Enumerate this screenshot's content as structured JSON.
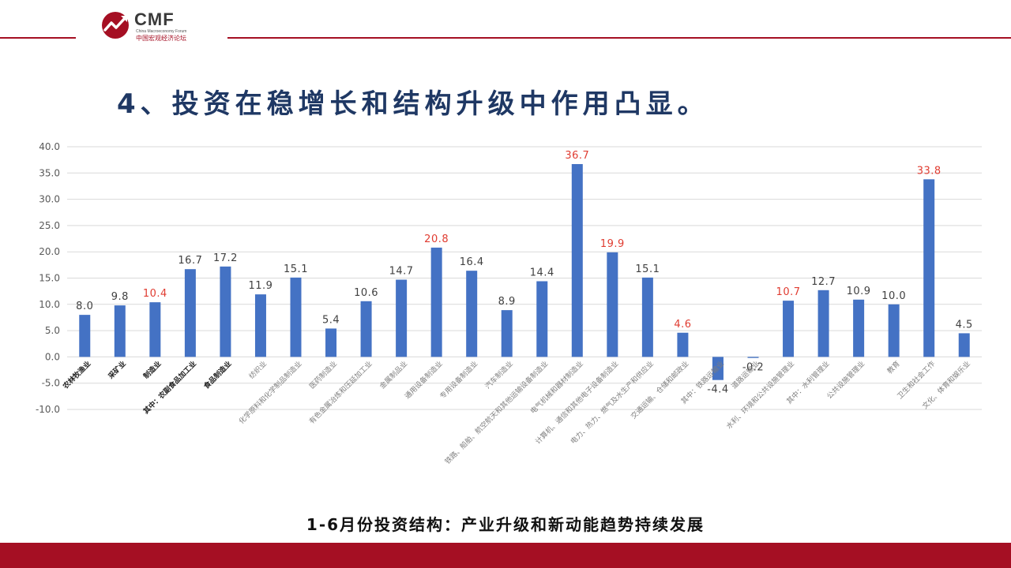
{
  "brand": {
    "name": "CMF",
    "subtitle_en": "China Macroeconomy Forum",
    "subtitle_cn": "中国宏观经济论坛",
    "accent_color": "#a50f23"
  },
  "page_title": "4、投资在稳增长和结构升级中作用凸显。",
  "caption": "1-6月份投资结构：产业升级和新动能趋势持续发展",
  "chart_data": {
    "type": "bar",
    "title": "",
    "xlabel": "",
    "ylabel": "",
    "ylim": [
      -10,
      40
    ],
    "yticks": [
      "40.0",
      "35.0",
      "30.0",
      "25.0",
      "20.0",
      "15.0",
      "10.0",
      "5.0",
      "0.0",
      "-5.0",
      "-10.0"
    ],
    "grid": true,
    "bar_color": "#4472c4",
    "label_color_default": "#404040",
    "label_color_highlight": "#e03c31",
    "categories": [
      "农林牧渔业",
      "采矿业",
      "制造业",
      "其中：农副食品加工业",
      "食品制造业",
      "纺织业",
      "化学原料和化学制品制造业",
      "医药制造业",
      "有色金属冶炼和压延加工业",
      "金属制品业",
      "通用设备制造业",
      "专用设备制造业",
      "汽车制造业",
      "铁路、船舶、航空航天和其他运输设备制造业",
      "电气机械和器材制造业",
      "计算机、通信和其他电子设备制造业",
      "电力、热力、燃气及水生产和供应业",
      "交通运输、仓储和邮政业",
      "其中：铁路运输业",
      "道路运输业",
      "水利、环境和公共设施管理业",
      "其中：水利管理业",
      "公共设施管理业",
      "教育",
      "卫生和社会工作",
      "文化、体育和娱乐业"
    ],
    "values": [
      8.0,
      9.8,
      10.4,
      16.7,
      17.2,
      11.9,
      15.1,
      5.4,
      10.6,
      14.7,
      20.8,
      16.4,
      8.9,
      14.4,
      36.7,
      19.9,
      15.1,
      4.6,
      -4.4,
      -0.2,
      10.7,
      12.7,
      10.9,
      10.0,
      33.8,
      4.5
    ],
    "value_labels": [
      "8.0",
      "9.8",
      "10.4",
      "16.7",
      "17.2",
      "11.9",
      "15.1",
      "5.4",
      "10.6",
      "14.7",
      "20.8",
      "16.4",
      "8.9",
      "14.4",
      "36.7",
      "19.9",
      "15.1",
      "4.6",
      "-4.4",
      "-0.2",
      "10.7",
      "12.7",
      "10.9",
      "10.0",
      "33.8",
      "4.5"
    ],
    "highlighted": [
      false,
      false,
      true,
      false,
      false,
      false,
      false,
      false,
      false,
      false,
      true,
      false,
      false,
      false,
      true,
      true,
      false,
      true,
      false,
      false,
      true,
      false,
      false,
      false,
      true,
      false
    ],
    "bold_categories": [
      true,
      true,
      true,
      true,
      true,
      false,
      false,
      false,
      false,
      false,
      false,
      false,
      false,
      false,
      false,
      false,
      false,
      false,
      false,
      false,
      false,
      false,
      false,
      false,
      false,
      false
    ]
  }
}
